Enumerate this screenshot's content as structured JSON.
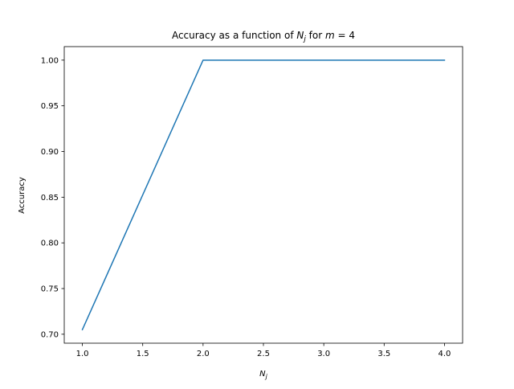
{
  "chart_data": {
    "type": "line",
    "title": {
      "prefix": "Accuracy as a function of ",
      "var_main": "N",
      "var_sub": "j",
      "middle": " for ",
      "param_var": "m",
      "param_eq": " = 4"
    },
    "xlabel": {
      "main": "N",
      "sub": "j"
    },
    "ylabel": "Accuracy",
    "x": [
      1.0,
      2.0,
      3.0,
      4.0
    ],
    "series": [
      {
        "values": [
          0.705,
          1.0,
          1.0,
          1.0
        ],
        "color": "#1f77b4"
      }
    ],
    "xlim": [
      0.85,
      4.15
    ],
    "ylim": [
      0.6902,
      1.0148
    ],
    "xticks": [
      1.0,
      1.5,
      2.0,
      2.5,
      3.0,
      3.5,
      4.0
    ],
    "xtick_labels": [
      "1.0",
      "1.5",
      "2.0",
      "2.5",
      "3.0",
      "3.5",
      "4.0"
    ],
    "yticks": [
      0.7,
      0.75,
      0.8,
      0.85,
      0.9,
      0.95,
      1.0
    ],
    "ytick_labels": [
      "0.70",
      "0.75",
      "0.80",
      "0.85",
      "0.90",
      "0.95",
      "1.00"
    ],
    "grid": false,
    "legend": "none"
  }
}
